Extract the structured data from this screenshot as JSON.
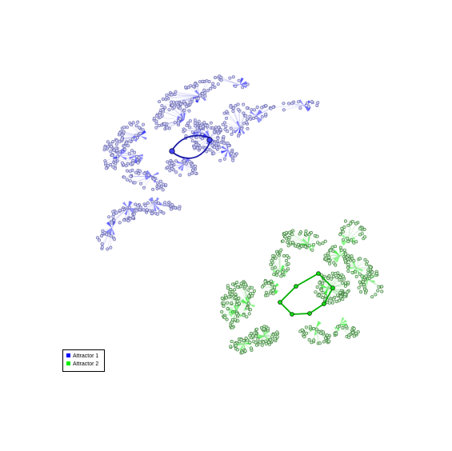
{
  "graph": {
    "type": "attractor state transition graph",
    "colors": {
      "attractor1": "#0000ff",
      "attractor1_light": "#a9a9ee",
      "attractor2": "#00ee00",
      "attractor2_light": "#8fd88f",
      "node_border_1": "#6666aa",
      "node_border_2": "#33772f"
    }
  },
  "legend": {
    "items": [
      {
        "label": "Attractor 1",
        "color": "#0000ff"
      },
      {
        "label": "Attractor 2",
        "color": "#00ee00"
      }
    ]
  }
}
